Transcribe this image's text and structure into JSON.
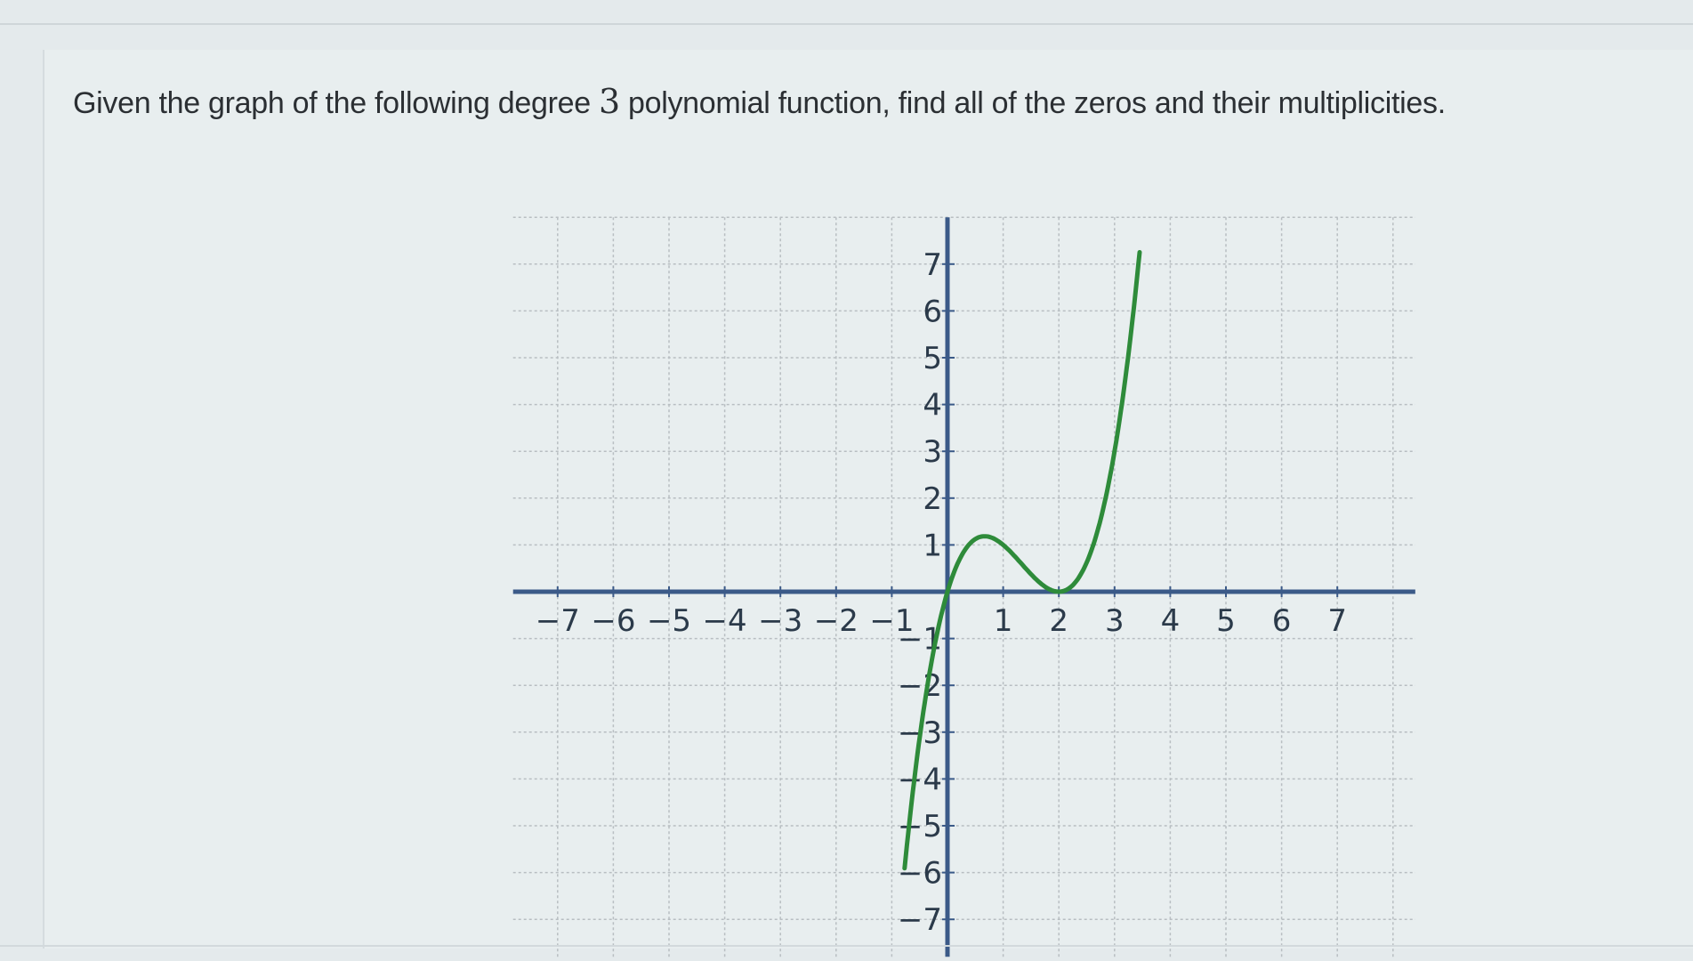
{
  "question": {
    "prefix": "Given the graph of the following degree ",
    "degree": "3",
    "suffix": " polynomial function, find all of the zeros and their multiplicities."
  },
  "chart_data": {
    "type": "line",
    "title": "",
    "xlabel": "",
    "ylabel": "",
    "xlim": [
      -7.8,
      8.4
    ],
    "ylim": [
      -7.8,
      8
    ],
    "x_ticks": [
      -7,
      -6,
      -5,
      -4,
      -3,
      -2,
      -1,
      1,
      2,
      3,
      4,
      5,
      6,
      7
    ],
    "y_ticks": [
      -7,
      -6,
      -5,
      -4,
      -3,
      -2,
      -1,
      1,
      2,
      3,
      4,
      5,
      6,
      7
    ],
    "grid": true,
    "series": [
      {
        "color": "#2e8b3a",
        "x": [
          -0.77,
          -0.6,
          -0.4,
          -0.2,
          0,
          0.2,
          0.4,
          0.67,
          1,
          1.3,
          1.6,
          2,
          2.4,
          2.8,
          3.0,
          3.2,
          3.45
        ],
        "y": [
          -7.3,
          -4.7,
          -2.3,
          -0.97,
          0,
          0.65,
          1.02,
          1.19,
          1.0,
          0.64,
          0.26,
          0,
          0.38,
          1.79,
          3.0,
          4.61,
          7.3
        ]
      }
    ],
    "colors": {
      "axis": "#3b5a88",
      "grid": "#b8bec2",
      "curve": "#2e8b3a"
    }
  }
}
